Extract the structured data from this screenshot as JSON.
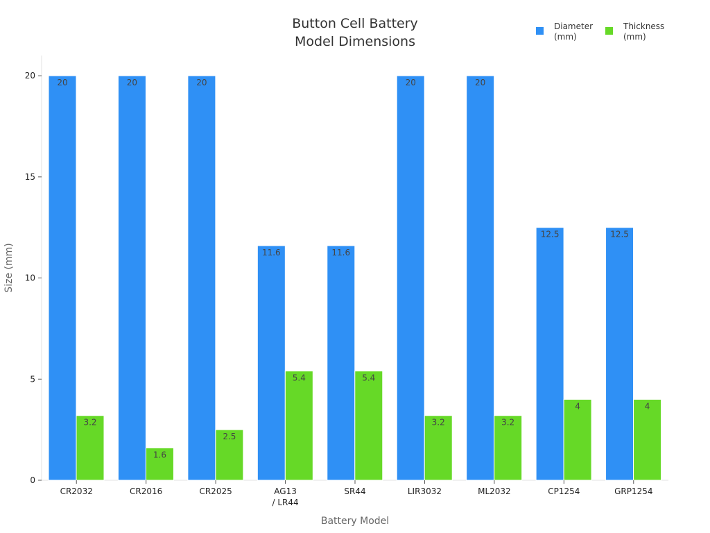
{
  "chart_data": {
    "type": "bar",
    "title": [
      "Button Cell Battery",
      "Model Dimensions"
    ],
    "xlabel": "Battery Model",
    "ylabel": "Size (mm)",
    "ylim": [
      0,
      21
    ],
    "yticks": [
      0,
      5,
      10,
      15,
      20
    ],
    "categories": [
      [
        "CR2032"
      ],
      [
        "CR2016"
      ],
      [
        "CR2025"
      ],
      [
        "AG13",
        "/ LR44"
      ],
      [
        "SR44"
      ],
      [
        "LIR3032"
      ],
      [
        "ML2032"
      ],
      [
        "CP1254"
      ],
      [
        "GRP1254"
      ]
    ],
    "series": [
      {
        "name": [
          "Diameter",
          "(mm)"
        ],
        "color": "#2f90f5",
        "values": [
          20,
          20,
          20,
          11.6,
          11.6,
          20,
          20,
          12.5,
          12.5
        ]
      },
      {
        "name": [
          "Thickness",
          "(mm)"
        ],
        "color": "#66d927",
        "values": [
          3.2,
          1.6,
          2.5,
          5.4,
          5.4,
          3.2,
          3.2,
          4,
          4
        ]
      }
    ],
    "legend_position": "top-right",
    "grid": false
  }
}
